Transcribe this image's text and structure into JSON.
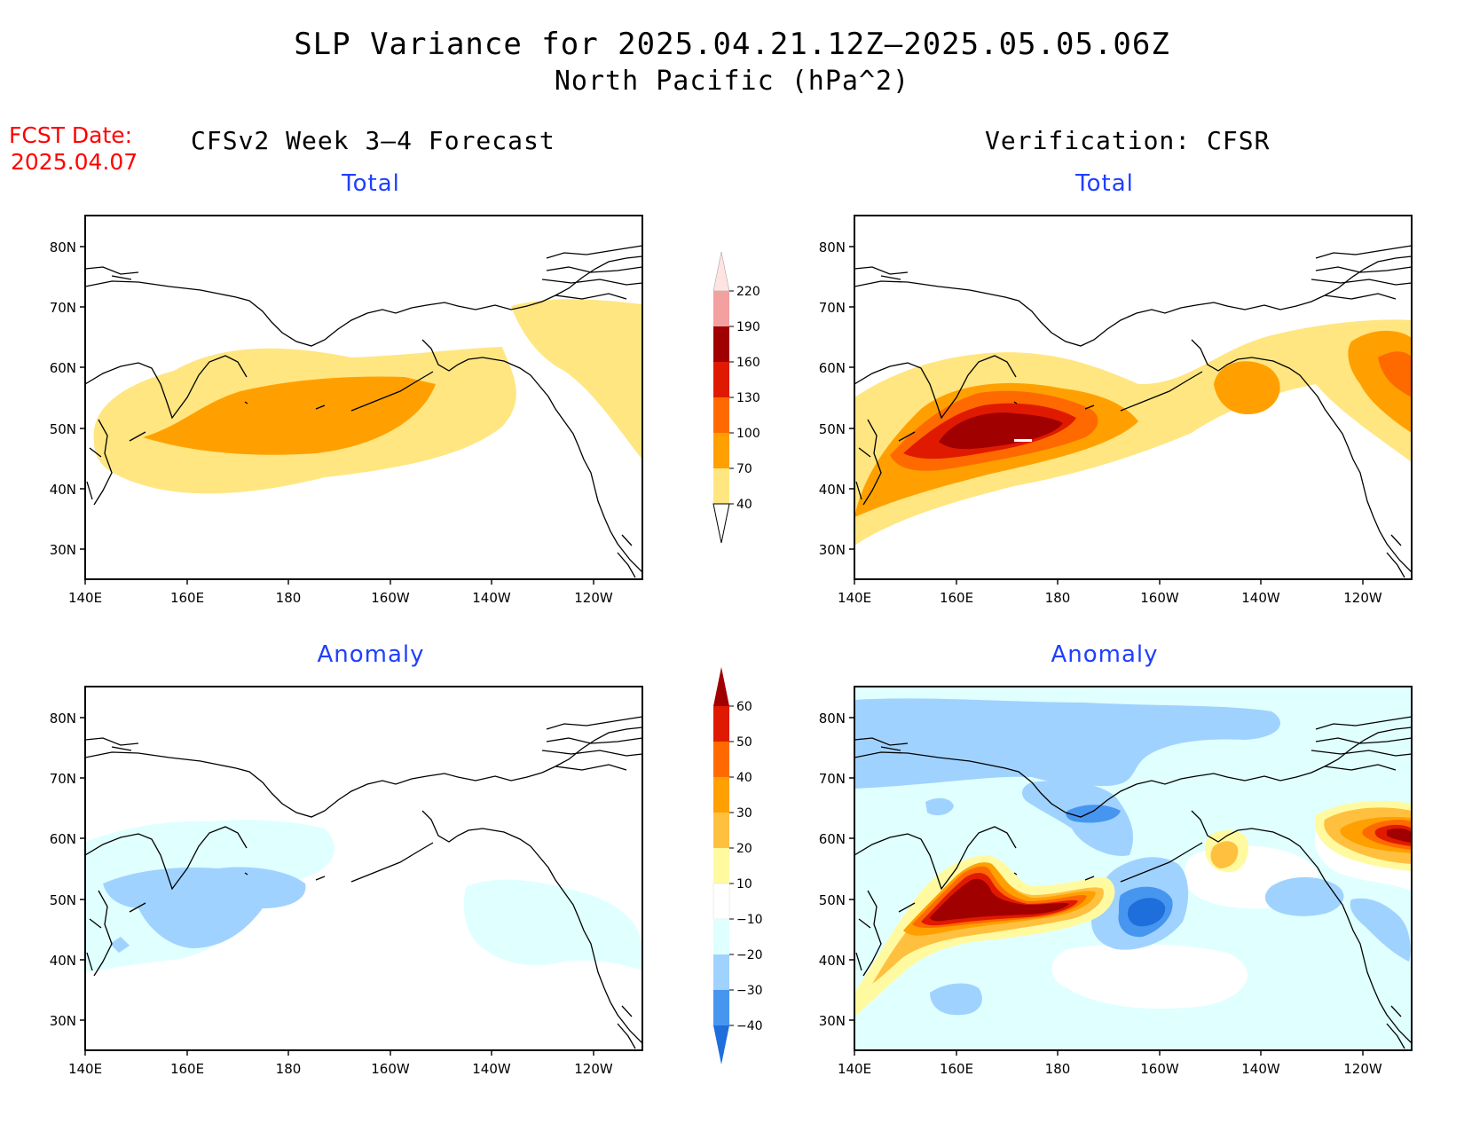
{
  "header": {
    "title_line1": "SLP Variance for 2025.04.21.12Z–2025.05.05.06Z",
    "title_line2": "North Pacific (hPa^2)",
    "fcst_label": "FCST Date:",
    "fcst_date": "2025.04.07",
    "left_column_title": "CFSv2 Week 3–4 Forecast",
    "right_column_title": "Verification: CFSR"
  },
  "panels": {
    "top_left_subtitle": "Total",
    "top_right_subtitle": "Total",
    "bottom_left_subtitle": "Anomaly",
    "bottom_right_subtitle": "Anomaly"
  },
  "axes": {
    "lat_labels": [
      "80N",
      "70N",
      "60N",
      "50N",
      "40N",
      "30N"
    ],
    "lon_labels": [
      "140E",
      "160E",
      "180",
      "160W",
      "140W",
      "120W"
    ]
  },
  "colorbars": {
    "total": {
      "labels": [
        "220",
        "190",
        "160",
        "130",
        "100",
        "70",
        "40"
      ],
      "colors": [
        "#ffe3e3",
        "#f2a0a0",
        "#a00000",
        "#e01a00",
        "#ff6a00",
        "#ffa000",
        "#ffe680"
      ]
    },
    "anomaly": {
      "labels": [
        "60",
        "50",
        "40",
        "30",
        "20",
        "10",
        "−10",
        "−20",
        "−30",
        "−40"
      ],
      "colors": [
        "#a00000",
        "#e01a00",
        "#ff6a00",
        "#ffa000",
        "#ffc040",
        "#fffaa0",
        "#ffffff",
        "#e0ffff",
        "#a0d2ff",
        "#4696f0",
        "#1e6edc"
      ]
    }
  }
}
